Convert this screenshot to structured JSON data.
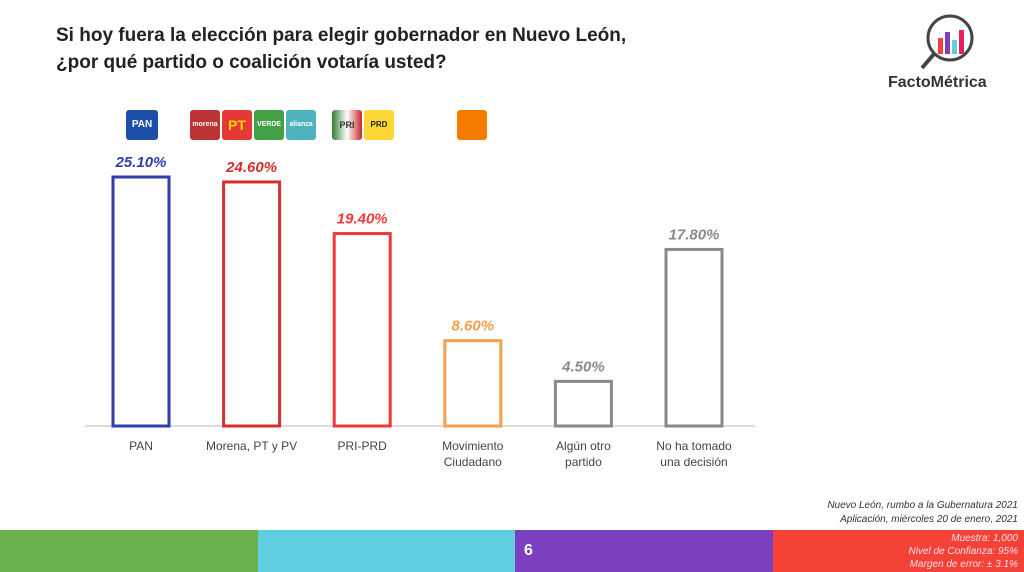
{
  "title_lines": [
    "Si hoy fuera la elección para elegir gobernador en Nuevo León,",
    "¿por qué  partido o coalición votaría usted?"
  ],
  "brand": "FactoMétrica",
  "party_logos": {
    "pan": "PAN",
    "morena": "morena",
    "pt": "PT",
    "verde": "VERDE",
    "alianza": "alianza",
    "pri": "PRI",
    "prd": "PRD"
  },
  "chart_data": {
    "type": "bar",
    "categories": [
      "PAN",
      "Morena, PT y PV",
      "PRI-PRD",
      "Movimiento Ciudadano",
      "Algún otro partido",
      "No ha tomado una decisión"
    ],
    "category_lines": [
      [
        "PAN"
      ],
      [
        "Morena, PT y PV"
      ],
      [
        "PRI-PRD"
      ],
      [
        "Movimiento",
        "Ciudadano"
      ],
      [
        "Algún otro",
        "partido"
      ],
      [
        "No ha tomado",
        "una decisión"
      ]
    ],
    "values": [
      25.1,
      24.6,
      19.4,
      8.6,
      4.5,
      17.8
    ],
    "data_labels": [
      "25.10%",
      "24.60%",
      "19.40%",
      "8.60%",
      "4.50%",
      "17.80%"
    ],
    "colors": [
      "#2f3fae",
      "#d32f2f",
      "#f0393b",
      "#f7a04c",
      "#8a8a8a",
      "#8a8a8a"
    ],
    "ylim": [
      0,
      25.1
    ],
    "grid": false
  },
  "footer": {
    "line1": "Nuevo León, rumbo a la Gubernatura 2021",
    "line2": "Aplicación, miércoles 20 de enero, 2021"
  },
  "meta": {
    "muestra": "Muestra:  1,000",
    "confianza": "Nivel de Confianza: 95%",
    "error": "Margen de error: ± 3.1%"
  },
  "page_number": "6",
  "band_colors": [
    "#6ab04c",
    "#5fcfe0",
    "#7b3fbf",
    "#f44336"
  ]
}
